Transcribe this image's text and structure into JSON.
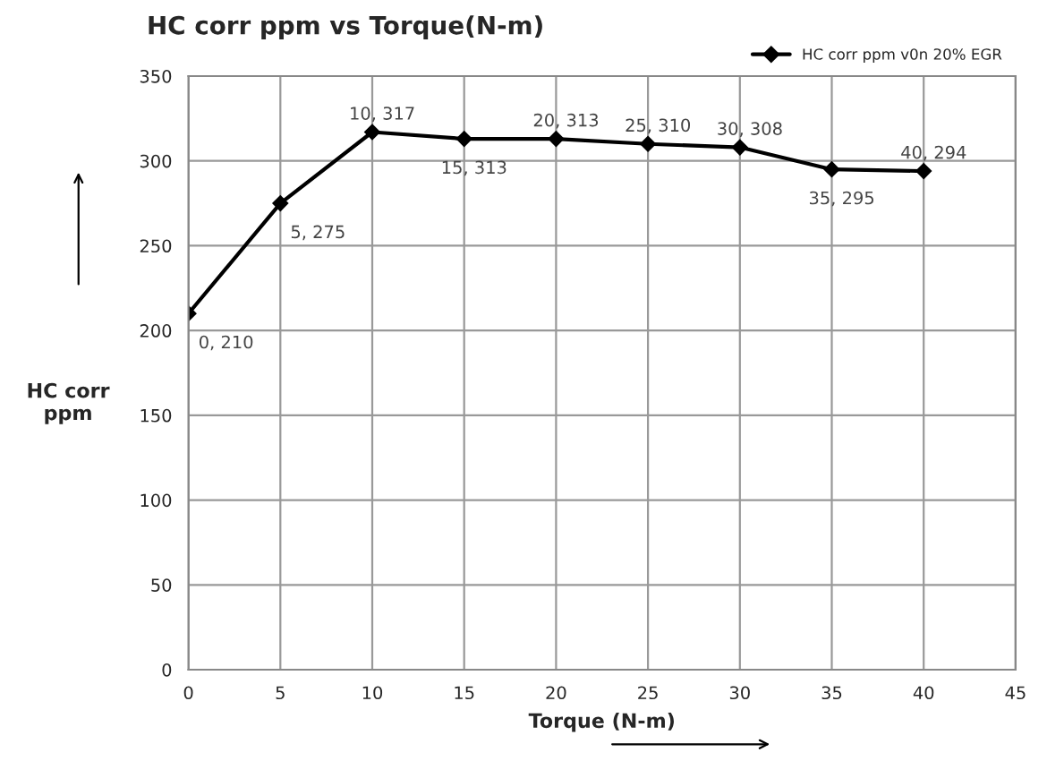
{
  "chart_data": {
    "type": "line",
    "title": "HC corr ppm vs Torque(N-m)",
    "xlabel": "Torque (N-m)",
    "ylabel": "HC corr\nppm",
    "x": [
      0,
      5,
      10,
      15,
      20,
      25,
      30,
      35,
      40
    ],
    "series": [
      {
        "name": "HC corr ppm v0n 20% EGR",
        "color": "#000000",
        "values": [
          210,
          275,
          317,
          313,
          313,
          310,
          308,
          295,
          294
        ],
        "value_labels": [
          "0, 210",
          "5, 275",
          "10, 317",
          "15, 313",
          "20, 313",
          "25, 310",
          "30, 308",
          "35, 295",
          "40, 294"
        ]
      }
    ],
    "xlim": [
      0,
      45
    ],
    "xticks": [
      0,
      5,
      10,
      15,
      20,
      25,
      30,
      35,
      40,
      45
    ],
    "ylim": [
      0,
      350
    ],
    "yticks": [
      0,
      50,
      100,
      150,
      200,
      250,
      300,
      350
    ],
    "grid": true,
    "legend": "top right",
    "marker": "diamond",
    "line_style": "solid"
  }
}
